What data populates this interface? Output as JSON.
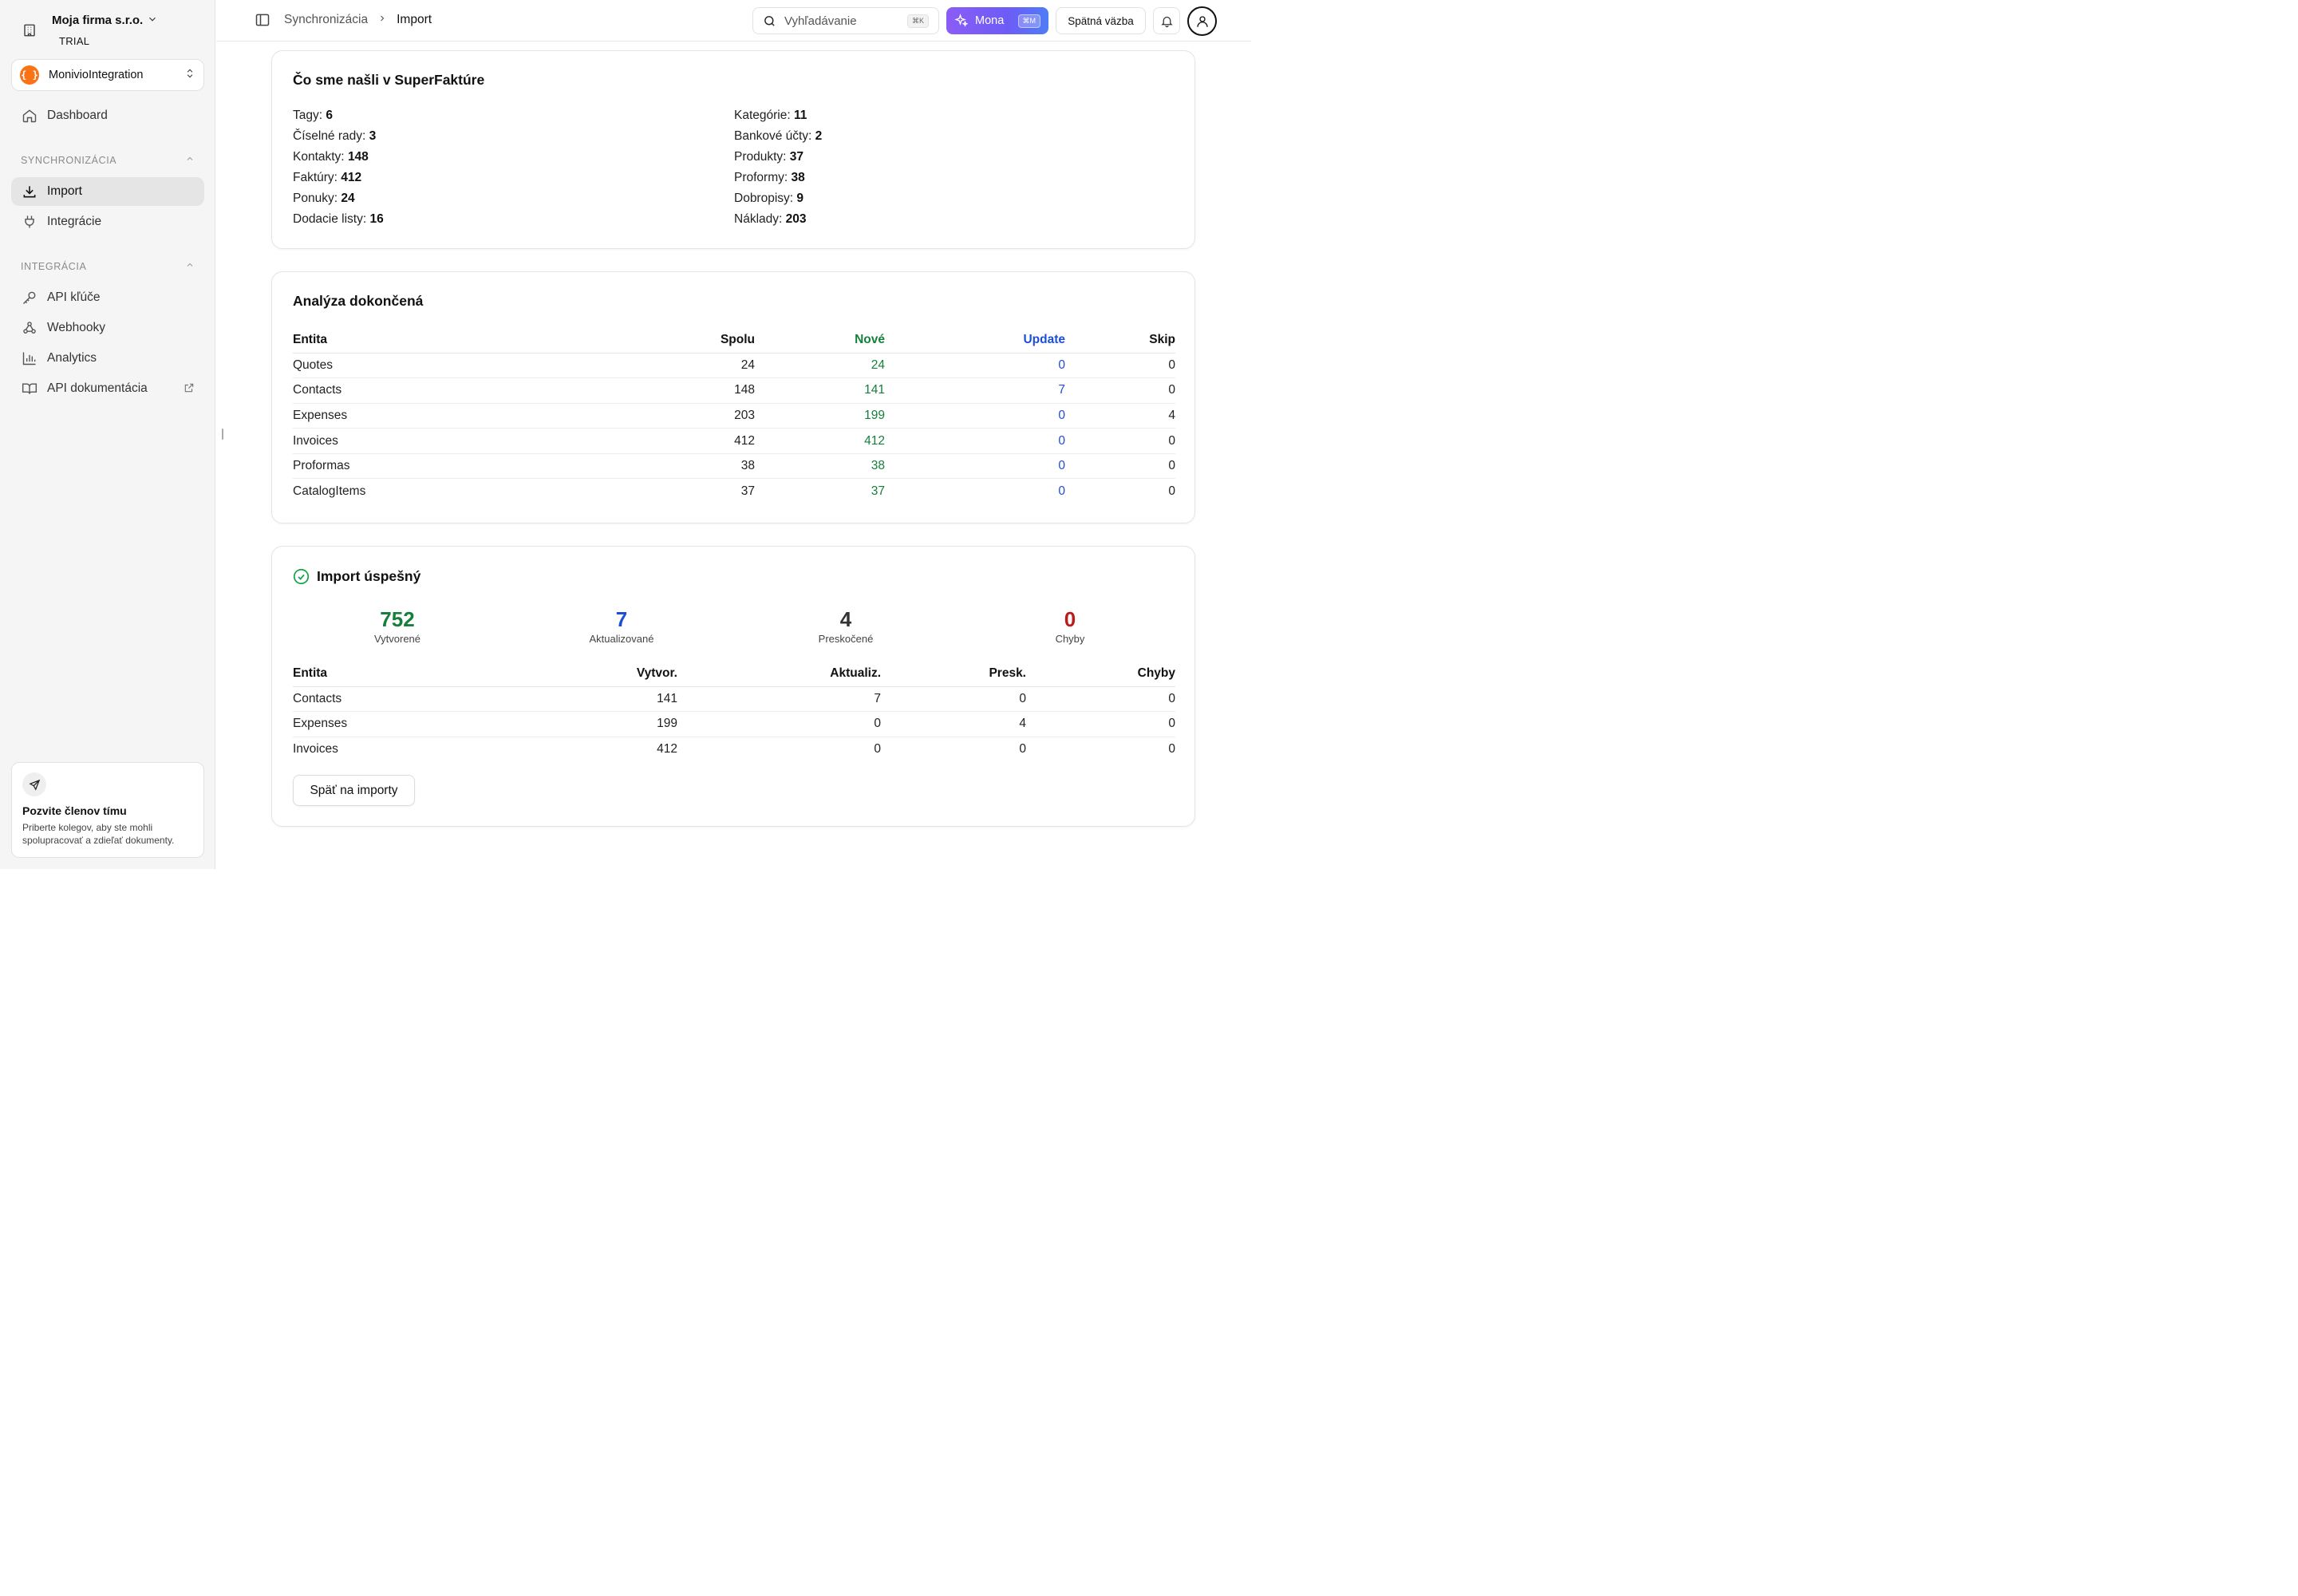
{
  "sidebar": {
    "org_name": "Moja firma s.r.o.",
    "org_plan": "TRIAL",
    "project_logo": "{ }",
    "project_name": "MonivioIntegration",
    "dashboard": "Dashboard",
    "section_sync": "SYNCHRONIZÁCIA",
    "import": "Import",
    "integrations": "Integrácie",
    "section_integration": "INTEGRÁCIA",
    "api_keys": "API kľúče",
    "webhooks": "Webhooky",
    "analytics": "Analytics",
    "api_docs": "API dokumentácia",
    "invite_title": "Pozvite členov tímu",
    "invite_text": "Priberte kolegov, aby ste mohli spolupracovať a zdieľať dokumenty."
  },
  "topbar": {
    "breadcrumb": [
      "Synchronizácia",
      "Import"
    ],
    "search_placeholder": "Vyhľadávanie",
    "search_shortcut": "⌘K",
    "mona_label": "Mona",
    "mona_shortcut": "⌘M",
    "feedback_label": "Spätná väzba"
  },
  "found": {
    "title": "Čo sme našli v SuperFaktúre",
    "left": [
      {
        "label": "Tagy:",
        "value": "6"
      },
      {
        "label": "Číselné rady:",
        "value": "3"
      },
      {
        "label": "Kontakty:",
        "value": "148"
      },
      {
        "label": "Faktúry:",
        "value": "412"
      },
      {
        "label": "Ponuky:",
        "value": "24"
      },
      {
        "label": "Dodacie listy:",
        "value": "16"
      }
    ],
    "right": [
      {
        "label": "Kategórie:",
        "value": "11"
      },
      {
        "label": "Bankové účty:",
        "value": "2"
      },
      {
        "label": "Produkty:",
        "value": "37"
      },
      {
        "label": "Proformy:",
        "value": "38"
      },
      {
        "label": "Dobropisy:",
        "value": "9"
      },
      {
        "label": "Náklady:",
        "value": "203"
      }
    ]
  },
  "analysis": {
    "title": "Analýza dokončená",
    "headers": [
      "Entita",
      "Spolu",
      "Nové",
      "Update",
      "Skip"
    ],
    "rows": [
      [
        "Quotes",
        "24",
        "24",
        "0",
        "0"
      ],
      [
        "Contacts",
        "148",
        "141",
        "7",
        "0"
      ],
      [
        "Expenses",
        "203",
        "199",
        "0",
        "4"
      ],
      [
        "Invoices",
        "412",
        "412",
        "0",
        "0"
      ],
      [
        "Proformas",
        "38",
        "38",
        "0",
        "0"
      ],
      [
        "CatalogItems",
        "37",
        "37",
        "0",
        "0"
      ]
    ]
  },
  "import_result": {
    "title": "Import úspešný",
    "summary": [
      {
        "value": "752",
        "label": "Vytvorené",
        "color": "#15803d"
      },
      {
        "value": "7",
        "label": "Aktualizované",
        "color": "#1d4ed8"
      },
      {
        "value": "4",
        "label": "Preskočené",
        "color": "#333333"
      },
      {
        "value": "0",
        "label": "Chyby",
        "color": "#b91c1c"
      }
    ],
    "headers": [
      "Entita",
      "Vytvor.",
      "Aktualiz.",
      "Presk.",
      "Chyby"
    ],
    "rows": [
      [
        "Contacts",
        "141",
        "7",
        "0",
        "0"
      ],
      [
        "Expenses",
        "199",
        "0",
        "4",
        "0"
      ],
      [
        "Invoices",
        "412",
        "0",
        "0",
        "0"
      ]
    ],
    "back_label": "Späť na importy"
  }
}
